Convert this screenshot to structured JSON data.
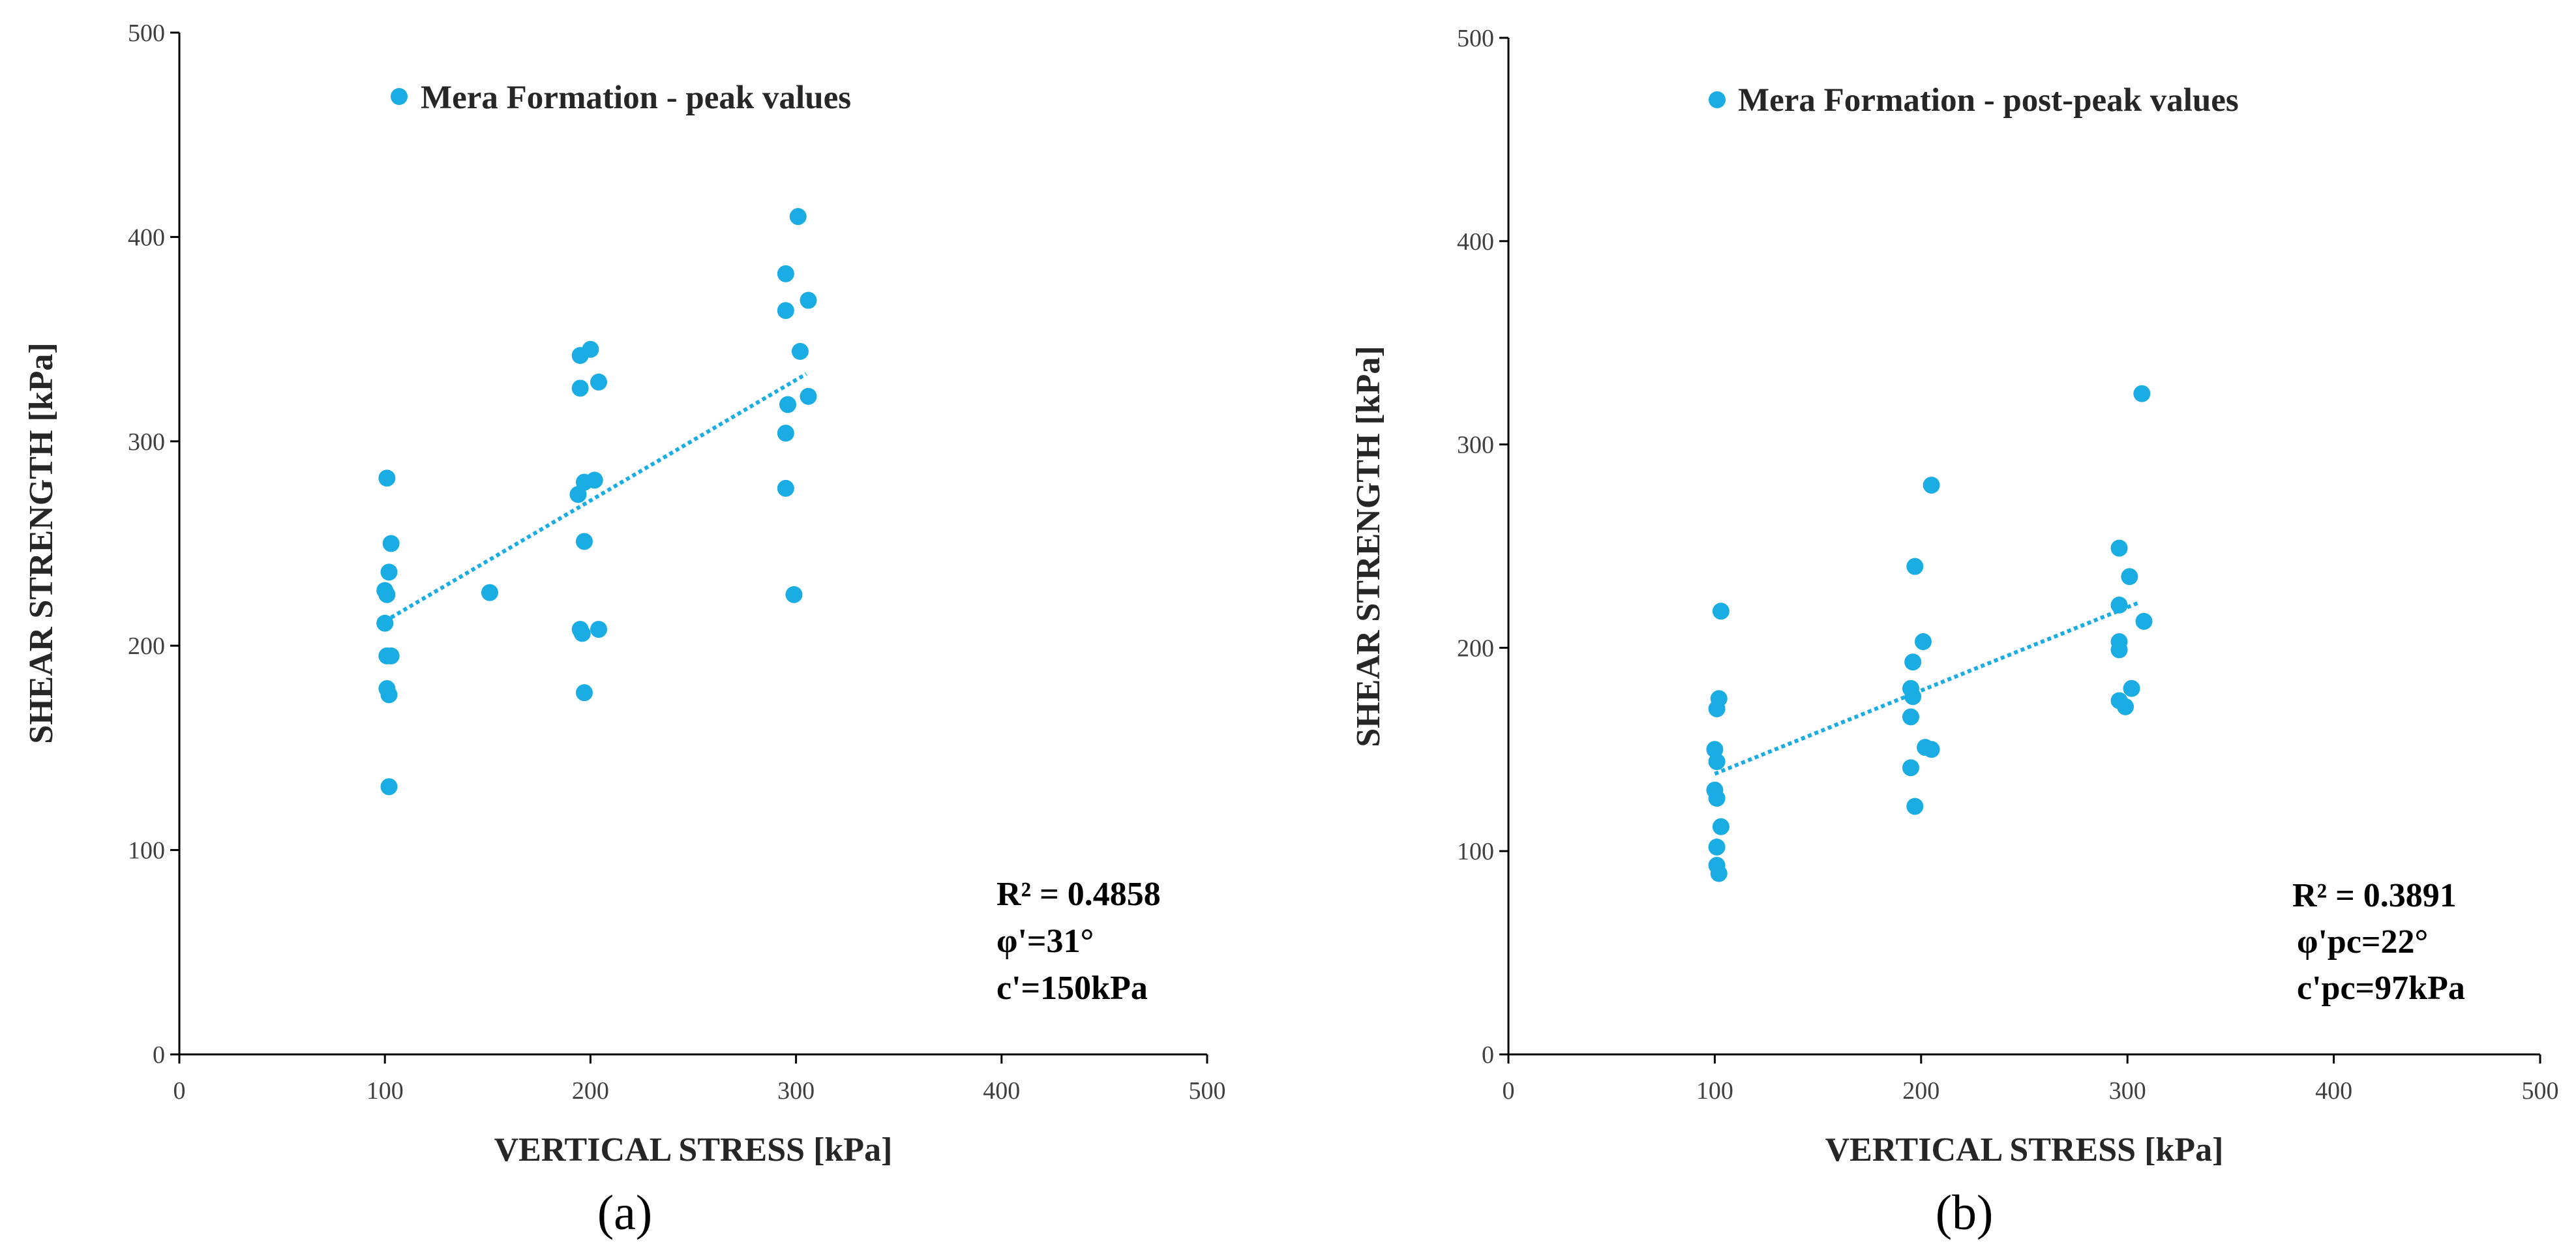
{
  "colors": {
    "marker": "#1AADE3",
    "trend": "#1AADE3",
    "axis": "#000000"
  },
  "chart_data": [
    {
      "type": "scatter",
      "panel_label": "(a)",
      "legend": "Mera Formation - peak values",
      "xlabel": "VERTICAL STRESS [kPa]",
      "ylabel": "SHEAR STRENGTH [kPa]",
      "xlim": [
        0,
        500
      ],
      "ylim": [
        0,
        500
      ],
      "xticks": [
        "0",
        "100",
        "200",
        "300",
        "400",
        "500"
      ],
      "yticks": [
        "0",
        "100",
        "200",
        "300",
        "400",
        "500"
      ],
      "points": [
        [
          101,
          282
        ],
        [
          103,
          250
        ],
        [
          102,
          236
        ],
        [
          100,
          227
        ],
        [
          101,
          225
        ],
        [
          100,
          211
        ],
        [
          101,
          195
        ],
        [
          103,
          195
        ],
        [
          101,
          179
        ],
        [
          102,
          176
        ],
        [
          102,
          131
        ],
        [
          151,
          226
        ],
        [
          195,
          342
        ],
        [
          200,
          345
        ],
        [
          195,
          326
        ],
        [
          204,
          329
        ],
        [
          197,
          280
        ],
        [
          202,
          281
        ],
        [
          194,
          274
        ],
        [
          197,
          251
        ],
        [
          195,
          208
        ],
        [
          204,
          208
        ],
        [
          196,
          206
        ],
        [
          197,
          177
        ],
        [
          301,
          410
        ],
        [
          295,
          382
        ],
        [
          306,
          369
        ],
        [
          295,
          364
        ],
        [
          302,
          344
        ],
        [
          306,
          322
        ],
        [
          296,
          318
        ],
        [
          295,
          304
        ],
        [
          295,
          277
        ],
        [
          299,
          225
        ]
      ],
      "trendline": {
        "x": [
          100,
          305
        ],
        "y": [
          212,
          333
        ]
      },
      "stats": {
        "r2": "R² = 0.4858",
        "phi": "φ'=31°",
        "c": "c'=150kPa"
      }
    },
    {
      "type": "scatter",
      "panel_label": "(b)",
      "legend": "Mera Formation - post-peak values",
      "xlabel": "VERTICAL STRESS [kPa]",
      "ylabel": "SHEAR STRENGTH [kPa]",
      "xlim": [
        0,
        500
      ],
      "ylim": [
        0,
        500
      ],
      "xticks": [
        "0",
        "100",
        "200",
        "300",
        "400",
        "500"
      ],
      "yticks": [
        "0",
        "100",
        "200",
        "300",
        "400",
        "500"
      ],
      "points": [
        [
          103,
          218
        ],
        [
          102,
          175
        ],
        [
          101,
          170
        ],
        [
          100,
          150
        ],
        [
          101,
          144
        ],
        [
          100,
          130
        ],
        [
          101,
          126
        ],
        [
          103,
          112
        ],
        [
          101,
          102
        ],
        [
          101,
          93
        ],
        [
          102,
          89
        ],
        [
          205,
          280
        ],
        [
          197,
          240
        ],
        [
          201,
          203
        ],
        [
          196,
          193
        ],
        [
          195,
          180
        ],
        [
          196,
          176
        ],
        [
          195,
          166
        ],
        [
          202,
          151
        ],
        [
          205,
          150
        ],
        [
          195,
          141
        ],
        [
          197,
          122
        ],
        [
          307,
          325
        ],
        [
          296,
          249
        ],
        [
          301,
          235
        ],
        [
          296,
          221
        ],
        [
          296,
          203
        ],
        [
          296,
          199
        ],
        [
          308,
          213
        ],
        [
          302,
          180
        ],
        [
          296,
          174
        ],
        [
          299,
          171
        ]
      ],
      "trendline": {
        "x": [
          100,
          305
        ],
        "y": [
          138,
          222
        ]
      },
      "stats": {
        "r2": "R² = 0.3891",
        "phi": "φ'pc=22°",
        "c": "c'pc=97kPa"
      }
    }
  ]
}
